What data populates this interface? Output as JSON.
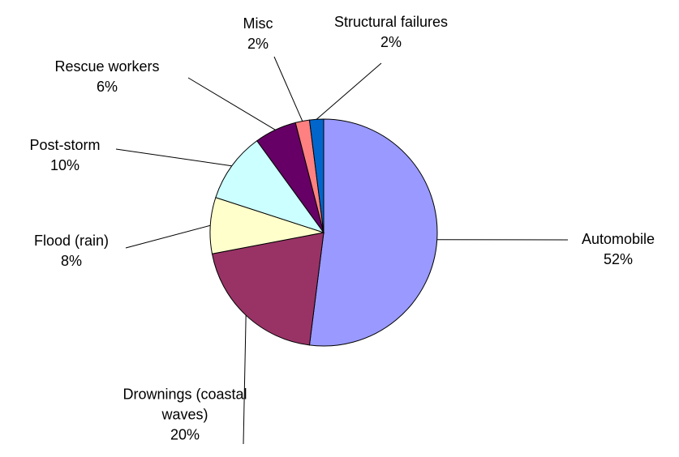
{
  "chart_data": {
    "type": "pie",
    "categories": [
      "Automobile",
      "Drownings (coastal waves)",
      "Flood (rain)",
      "Post-storm",
      "Rescue workers",
      "Misc",
      "Structural failures"
    ],
    "values": [
      52,
      20,
      8,
      10,
      6,
      2,
      2
    ],
    "value_labels": [
      "52%",
      "20%",
      "8%",
      "10%",
      "6%",
      "2%",
      "2%"
    ],
    "colors": [
      "#9999ff",
      "#993366",
      "#ffffcc",
      "#ccffff",
      "#660066",
      "#ff8080",
      "#0066cc"
    ]
  }
}
